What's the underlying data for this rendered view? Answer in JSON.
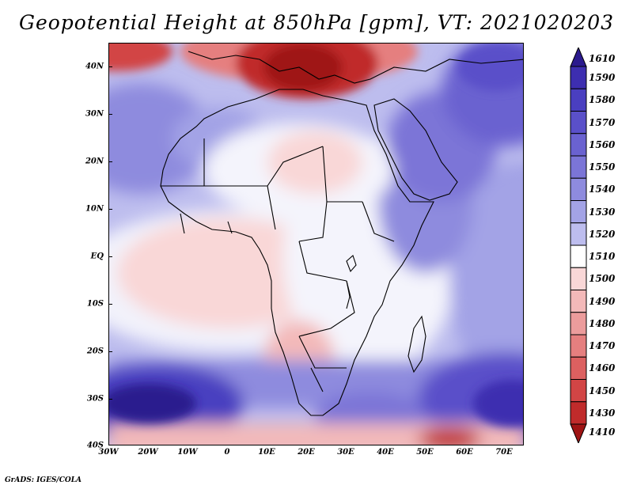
{
  "title": "Geopotential Height at 850hPa [gpm], VT: 2021020203",
  "credit": "GrADS: IGES/COLA",
  "map": {
    "variable": "Geopotential Height",
    "level": "850hPa",
    "units": "gpm",
    "valid_time": "2021020203",
    "lat_labels": [
      "40N",
      "30N",
      "20N",
      "10N",
      "EQ",
      "10S",
      "20S",
      "30S",
      "40S"
    ],
    "lon_labels": [
      "30W",
      "20W",
      "10W",
      "0",
      "10E",
      "20E",
      "30E",
      "40E",
      "50E",
      "60E",
      "70E"
    ]
  },
  "colorbar": {
    "labels": [
      "1610",
      "1590",
      "1580",
      "1570",
      "1560",
      "1550",
      "1540",
      "1530",
      "1520",
      "1510",
      "1500",
      "1490",
      "1480",
      "1470",
      "1460",
      "1450",
      "1430",
      "1410"
    ],
    "colors": [
      "#2b1a8e",
      "#3d2eb0",
      "#4a3fc0",
      "#5a50c9",
      "#6a62d0",
      "#7b75d7",
      "#8e8bde",
      "#a3a3e6",
      "#bdbdee",
      "#ffffff",
      "#f9d7d7",
      "#f3b9b9",
      "#ec9c9c",
      "#e57f7f",
      "#dc6060",
      "#d24545",
      "#c02b2b",
      "#9f1414"
    ]
  }
}
